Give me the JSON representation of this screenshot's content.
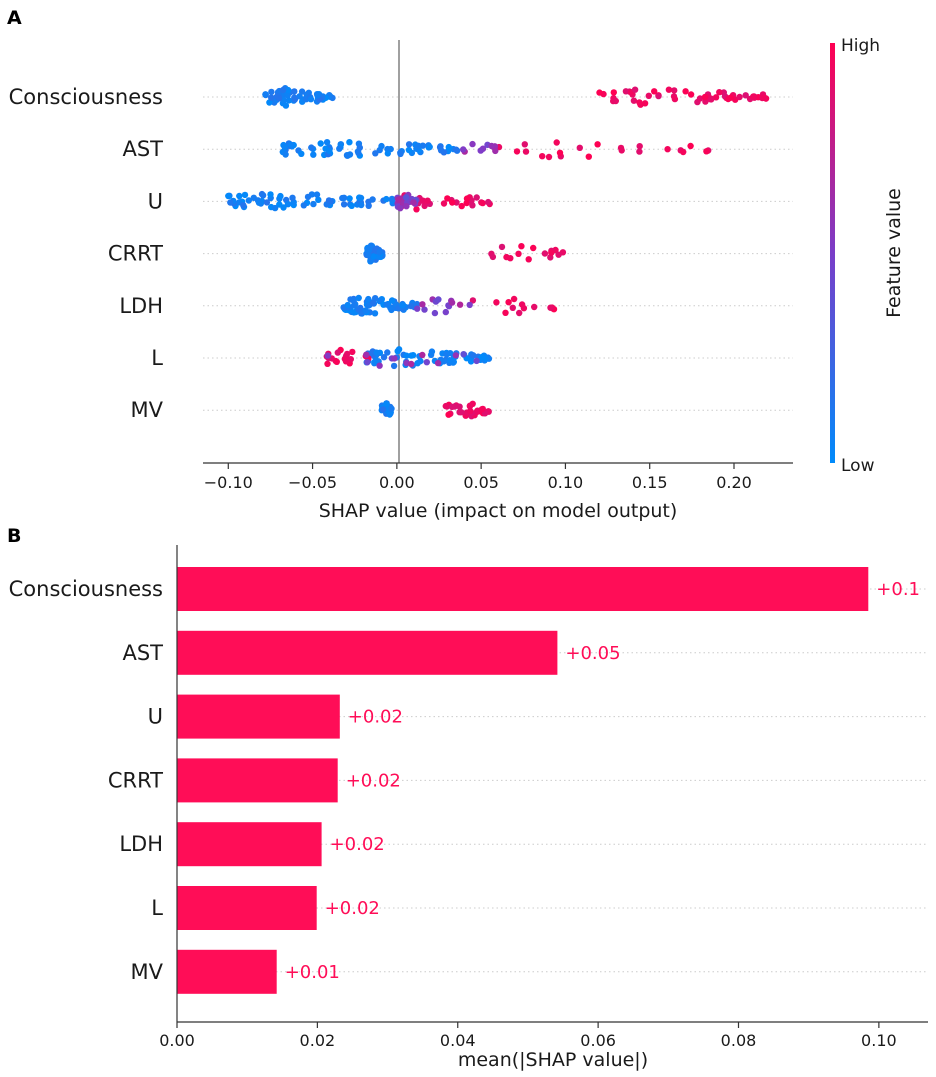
{
  "panels": {
    "a_label": "A",
    "b_label": "B"
  },
  "colors": {
    "high": "#ff0052",
    "low": "#1e88e5",
    "bar": "#ff0d57",
    "zero_line": "#888888"
  },
  "chart_data": [
    {
      "type": "scatter",
      "title": "",
      "xlabel": "SHAP value (impact on model output)",
      "ylabel": "",
      "xlim": [
        -0.115,
        0.235
      ],
      "xticks": [
        -0.1,
        -0.05,
        0.0,
        0.05,
        0.1,
        0.15,
        0.2
      ],
      "xtick_labels": [
        "−0.10",
        "−0.05",
        "0.00",
        "0.05",
        "0.10",
        "0.15",
        "0.20"
      ],
      "colorbar": {
        "label": "Feature value",
        "high_label": "High",
        "low_label": "Low"
      },
      "features": [
        {
          "name": "Consciousness",
          "low_range": [
            -0.078,
            -0.038
          ],
          "low_count": 60,
          "high_range": [
            0.12,
            0.22
          ],
          "high_count": 55,
          "mixed_count": 0
        },
        {
          "name": "AST",
          "low_range": [
            -0.068,
            0.038
          ],
          "low_count": 70,
          "high_range": [
            0.06,
            0.185
          ],
          "high_count": 22,
          "mixed_count": 10
        },
        {
          "name": "U",
          "low_range": [
            -0.1,
            0.012
          ],
          "low_count": 70,
          "high_range": [
            0.0,
            0.057
          ],
          "high_count": 30,
          "mixed_count": 25
        },
        {
          "name": "CRRT",
          "low_range": [
            -0.018,
            -0.008
          ],
          "low_count": 55,
          "high_range": [
            0.056,
            0.1
          ],
          "high_count": 16,
          "mixed_count": 0
        },
        {
          "name": "LDH",
          "low_range": [
            -0.032,
            0.012
          ],
          "low_count": 65,
          "high_range": [
            0.045,
            0.105
          ],
          "high_count": 14,
          "mixed_count": 14
        },
        {
          "name": "L",
          "low_range": [
            -0.02,
            0.055
          ],
          "low_count": 70,
          "high_range": [
            -0.042,
            -0.015
          ],
          "high_count": 18,
          "mixed_count": 14
        },
        {
          "name": "MV",
          "low_range": [
            -0.009,
            -0.003
          ],
          "low_count": 30,
          "high_range": [
            0.029,
            0.058
          ],
          "high_count": 30,
          "mixed_count": 0
        }
      ]
    },
    {
      "type": "bar",
      "orientation": "horizontal",
      "title": "",
      "xlabel": "mean(|SHAP value|)",
      "xlim": [
        0,
        0.107
      ],
      "xticks": [
        0.0,
        0.02,
        0.04,
        0.06,
        0.08,
        0.1
      ],
      "xtick_labels": [
        "0.00",
        "0.02",
        "0.04",
        "0.06",
        "0.08",
        "0.10"
      ],
      "categories": [
        "Consciousness",
        "AST",
        "U",
        "CRRT",
        "LDH",
        "L",
        "MV"
      ],
      "values": [
        0.0985,
        0.0542,
        0.0232,
        0.0229,
        0.0206,
        0.0199,
        0.0142
      ],
      "value_labels": [
        "+0.1",
        "+0.05",
        "+0.02",
        "+0.02",
        "+0.02",
        "+0.02",
        "+0.01"
      ]
    }
  ]
}
